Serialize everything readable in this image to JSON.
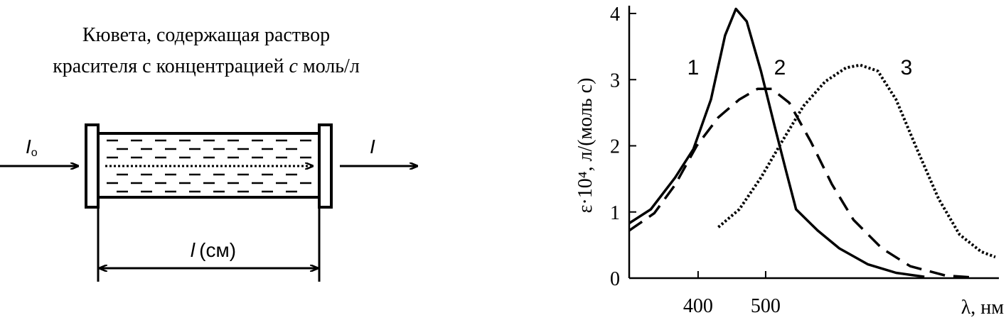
{
  "diagram": {
    "caption_line1": "Кювета, содержащая  раствор",
    "caption_line2": {
      "before": "красителя с концентрацией ",
      "italic": "c",
      "after": " моль/л"
    },
    "incident": {
      "symbol": "I",
      "subscript": "o"
    },
    "transmitted": "I",
    "length": {
      "symbol": "l",
      "unit": "(см)"
    }
  },
  "chart_data": {
    "type": "line",
    "y_label": "ε·10⁴, л/(моль с)",
    "x_label": "λ, нм",
    "xlim": [
      298,
      840
    ],
    "ylim": [
      0,
      4
    ],
    "xticks": [
      400,
      500
    ],
    "yticks": [
      0,
      1,
      2,
      3,
      4
    ],
    "series": [
      {
        "name": "1",
        "color": "#000000",
        "style": "solid",
        "x": [
          298,
          330,
          366,
          393,
          419,
          440,
          456,
          472,
          493,
          514,
          530,
          545,
          577,
          609,
          651,
          693,
          735
        ],
        "values": [
          0.83,
          1.04,
          1.52,
          1.95,
          2.7,
          3.67,
          4.07,
          3.88,
          3.13,
          2.27,
          1.63,
          1.04,
          0.72,
          0.45,
          0.21,
          0.08,
          0.02
        ]
      },
      {
        "name": "2",
        "color": "#000000",
        "style": "dashed",
        "x": [
          298,
          335,
          366,
          398,
          430,
          461,
          488,
          509,
          535,
          567,
          598,
          630,
          672,
          714,
          766,
          809
        ],
        "values": [
          0.72,
          0.98,
          1.41,
          2.0,
          2.43,
          2.7,
          2.86,
          2.86,
          2.65,
          2.06,
          1.42,
          0.88,
          0.45,
          0.18,
          0.04,
          0.01
        ]
      },
      {
        "name": "3",
        "color": "#000000",
        "style": "dotted",
        "x": [
          430,
          461,
          493,
          524,
          556,
          588,
          619,
          640,
          666,
          693,
          724,
          756,
          787,
          819,
          840
        ],
        "values": [
          0.77,
          1.04,
          1.52,
          2.06,
          2.6,
          2.97,
          3.18,
          3.22,
          3.13,
          2.7,
          1.95,
          1.2,
          0.66,
          0.4,
          0.32
        ]
      }
    ]
  }
}
